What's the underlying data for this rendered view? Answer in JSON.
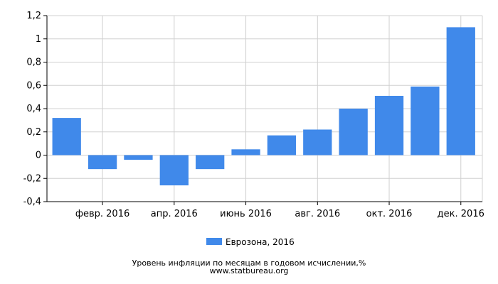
{
  "chart_data": {
    "type": "bar",
    "categories": [
      "янв. 2016",
      "февр. 2016",
      "март 2016",
      "апр. 2016",
      "май 2016",
      "июнь 2016",
      "июль 2016",
      "авг. 2016",
      "сент. 2016",
      "окт. 2016",
      "нояб. 2016",
      "дек. 2016"
    ],
    "visible_tick_labels": [
      "февр. 2016",
      "апр. 2016",
      "июнь 2016",
      "авг. 2016",
      "окт. 2016",
      "дек. 2016"
    ],
    "series": [
      {
        "name": "Еврозона, 2016",
        "values": [
          0.32,
          -0.12,
          -0.04,
          -0.26,
          -0.12,
          0.05,
          0.17,
          0.22,
          0.4,
          0.51,
          0.59,
          1.1
        ]
      }
    ],
    "ylim": [
      -0.4,
      1.2
    ],
    "yticks": [
      "-0,4",
      "-0,2",
      "0",
      "0,2",
      "0,4",
      "0,6",
      "0,8",
      "1",
      "1,2"
    ],
    "grid": true,
    "legend_position": "bottom-center",
    "colors": {
      "bar": "#4089ea",
      "grid": "#d0d0d0",
      "axis": "#000000"
    }
  },
  "caption": {
    "line1": "Уровень инфляции по месяцам в годовом исчислении,%",
    "line2": "www.statbureau.org"
  }
}
